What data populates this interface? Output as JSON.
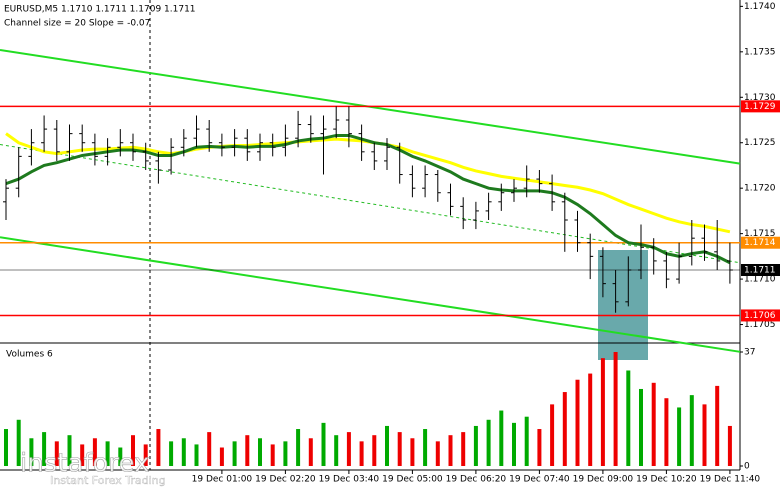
{
  "chart_data": [
    {
      "type": "candlestick",
      "title": "EURUSD,M5  1.1710 1.1711 1.1709 1.1711",
      "subtitle": "Channel size = 20 Slope = -0.07",
      "categories": [
        null,
        null,
        null,
        null,
        null,
        null,
        null,
        null,
        null,
        null,
        null,
        null,
        null,
        null,
        null,
        null,
        null,
        "19 Dec 01:00",
        null,
        null,
        null,
        null,
        "19 Dec 02:20",
        null,
        null,
        null,
        null,
        "19 Dec 03:40",
        null,
        null,
        null,
        null,
        "19 Dec 05:00",
        null,
        null,
        null,
        null,
        "19 Dec 06:20",
        null,
        null,
        null,
        null,
        "19 Dec 07:40",
        null,
        null,
        null,
        null,
        "19 Dec 09:00",
        null,
        null,
        null,
        null,
        "19 Dec 10:20",
        null,
        null,
        null,
        null,
        "19 Dec 11:40"
      ],
      "open": [
        1.17185,
        1.172,
        1.17235,
        1.1725,
        1.17265,
        1.1724,
        1.1726,
        1.1725,
        1.17235,
        1.17245,
        1.1725,
        1.1724,
        1.1723,
        1.1722,
        1.17245,
        1.17255,
        1.17265,
        1.1725,
        1.17245,
        1.17255,
        1.1724,
        1.1725,
        1.17245,
        1.17255,
        1.1727,
        1.1726,
        1.17265,
        1.17275,
        1.1726,
        1.1724,
        1.1723,
        1.17245,
        1.17215,
        1.172,
        1.17215,
        1.17195,
        1.1718,
        1.17165,
        1.17175,
        1.17185,
        1.17195,
        1.172,
        1.1721,
        1.17205,
        1.17185,
        1.17165,
        1.1714,
        1.17125,
        1.17095,
        1.17075,
        1.1711,
        1.17135,
        1.1712,
        1.171,
        1.17125,
        1.17145,
        1.1713,
        1.1712
      ],
      "high": [
        1.1721,
        1.17245,
        1.17265,
        1.1728,
        1.17275,
        1.1727,
        1.1727,
        1.1726,
        1.17255,
        1.17265,
        1.1726,
        1.1725,
        1.1724,
        1.17255,
        1.17265,
        1.1728,
        1.17275,
        1.1726,
        1.17265,
        1.17265,
        1.1726,
        1.1726,
        1.1727,
        1.17285,
        1.1728,
        1.1728,
        1.1729,
        1.1729,
        1.1727,
        1.1725,
        1.17255,
        1.1725,
        1.17225,
        1.17225,
        1.1722,
        1.17205,
        1.1719,
        1.17185,
        1.17195,
        1.17205,
        1.1721,
        1.17225,
        1.1722,
        1.17215,
        1.17195,
        1.17175,
        1.1715,
        1.17135,
        1.1711,
        1.17125,
        1.1716,
        1.17145,
        1.1713,
        1.1714,
        1.17165,
        1.1716,
        1.17165,
        1.1714
      ],
      "low": [
        1.17165,
        1.1719,
        1.17225,
        1.1724,
        1.1723,
        1.1723,
        1.1724,
        1.17225,
        1.17225,
        1.17235,
        1.1723,
        1.1722,
        1.17205,
        1.17215,
        1.17235,
        1.17245,
        1.1724,
        1.17235,
        1.17235,
        1.1723,
        1.1723,
        1.17235,
        1.17235,
        1.17245,
        1.1725,
        1.17215,
        1.17255,
        1.17245,
        1.1723,
        1.1722,
        1.1722,
        1.17205,
        1.1719,
        1.1719,
        1.17185,
        1.1717,
        1.17155,
        1.17155,
        1.17165,
        1.17175,
        1.17185,
        1.1719,
        1.17195,
        1.17175,
        1.1713,
        1.1713,
        1.171,
        1.1708,
        1.17063,
        1.1707,
        1.171,
        1.17105,
        1.1709,
        1.17095,
        1.17115,
        1.1712,
        1.1711,
        1.17095
      ],
      "close": [
        1.172,
        1.17235,
        1.1725,
        1.17265,
        1.1724,
        1.1726,
        1.1725,
        1.17235,
        1.17245,
        1.1725,
        1.1724,
        1.1723,
        1.1722,
        1.17245,
        1.17255,
        1.17265,
        1.1725,
        1.17245,
        1.17255,
        1.1724,
        1.1725,
        1.17245,
        1.17255,
        1.1727,
        1.1726,
        1.17265,
        1.17275,
        1.1726,
        1.1724,
        1.1723,
        1.17245,
        1.17215,
        1.172,
        1.17215,
        1.17195,
        1.1718,
        1.17165,
        1.17175,
        1.17185,
        1.17195,
        1.172,
        1.1721,
        1.17205,
        1.17185,
        1.17165,
        1.1714,
        1.17125,
        1.17095,
        1.17075,
        1.1711,
        1.17135,
        1.1712,
        1.171,
        1.17125,
        1.17145,
        1.1713,
        1.1712,
        1.1711
      ],
      "color": "#000000",
      "lines": [
        {
          "color": "#ffff00",
          "values": [
            1.1726,
            1.1725,
            1.17245,
            1.1724,
            1.17238,
            1.1724,
            1.17242,
            1.17243,
            1.17243,
            1.17244,
            1.17245,
            1.17243,
            1.1724,
            1.17238,
            1.1724,
            1.17243,
            1.17245,
            1.17246,
            1.17247,
            1.17247,
            1.17248,
            1.17249,
            1.1725,
            1.17251,
            1.17252,
            1.17253,
            1.17254,
            1.17253,
            1.17252,
            1.1725,
            1.17248,
            1.17245,
            1.1724,
            1.17236,
            1.17232,
            1.17228,
            1.17223,
            1.17219,
            1.17216,
            1.17213,
            1.17211,
            1.17209,
            1.17207,
            1.17205,
            1.17203,
            1.17201,
            1.17198,
            1.17194,
            1.17188,
            1.17182,
            1.17177,
            1.17172,
            1.17167,
            1.17163,
            1.1716,
            1.17158,
            1.17155,
            1.17152
          ]
        },
        {
          "color": "#1e7a1e",
          "values": [
            1.17205,
            1.1721,
            1.17218,
            1.17225,
            1.17228,
            1.17232,
            1.17236,
            1.17238,
            1.1724,
            1.17242,
            1.17242,
            1.1724,
            1.17236,
            1.17236,
            1.1724,
            1.17245,
            1.17246,
            1.17245,
            1.17246,
            1.17245,
            1.17246,
            1.17246,
            1.17248,
            1.17252,
            1.17254,
            1.17255,
            1.17258,
            1.17258,
            1.17254,
            1.1725,
            1.17248,
            1.17242,
            1.17235,
            1.1723,
            1.17224,
            1.17218,
            1.1721,
            1.17205,
            1.172,
            1.17198,
            1.17197,
            1.17197,
            1.17197,
            1.17195,
            1.1719,
            1.17182,
            1.17172,
            1.1716,
            1.17148,
            1.1714,
            1.17138,
            1.17135,
            1.17128,
            1.17125,
            1.17128,
            1.1713,
            1.17125,
            1.17118
          ]
        }
      ],
      "channel": [
        {
          "color": "#22dd22",
          "start": 1.17352,
          "end": 1.17227
        },
        {
          "color": "#22dd22",
          "start": 1.17146,
          "end": 1.1702
        },
        {
          "color": "#22bb22",
          "start": 1.17248,
          "end": 1.17118,
          "dashed": true
        }
      ],
      "levels": [
        {
          "value": 1.1729,
          "label": "1.1729",
          "color": "#ff0000"
        },
        {
          "value": 1.1706,
          "label": "1.1706",
          "color": "#ff0000"
        },
        {
          "value": 1.1714,
          "label": "1.1714",
          "color": "#ff8c00"
        },
        {
          "value": 1.1711,
          "label": "1.1711",
          "color": "#000000"
        }
      ],
      "ylim": [
        1.17033,
        1.17407
      ],
      "yticks": [
        {
          "value": 1.1705,
          "label": "1.1705"
        },
        {
          "value": 1.171,
          "label": "1.1710"
        },
        {
          "value": 1.1715,
          "label": "1.1715"
        },
        {
          "value": 1.172,
          "label": "1.1720"
        },
        {
          "value": 1.1725,
          "label": "1.1725"
        },
        {
          "value": 1.173,
          "label": "1.1730"
        },
        {
          "value": 1.1735,
          "label": "1.1735"
        },
        {
          "value": 1.174,
          "label": "1.1740"
        }
      ]
    },
    {
      "type": "bar",
      "title": "Volumes 6",
      "up_color": "#00aa00",
      "down_color": "#ee0000",
      "values": [
        12,
        15,
        9,
        11,
        8,
        10,
        7,
        9,
        8,
        6,
        10,
        7,
        12,
        8,
        9,
        7,
        11,
        6,
        8,
        10,
        9,
        7,
        8,
        12,
        9,
        14,
        10,
        11,
        8,
        10,
        13,
        11,
        9,
        12,
        8,
        10,
        11,
        13,
        15,
        18,
        14,
        16,
        12,
        20,
        24,
        28,
        30,
        35,
        37,
        31,
        25,
        27,
        22,
        19,
        23,
        20,
        26,
        13
      ],
      "ylim": [
        0,
        37
      ],
      "yticks": [
        0,
        37
      ]
    }
  ],
  "logo": {
    "name": "instaforex",
    "tagline": "Instant Forex Trading"
  }
}
